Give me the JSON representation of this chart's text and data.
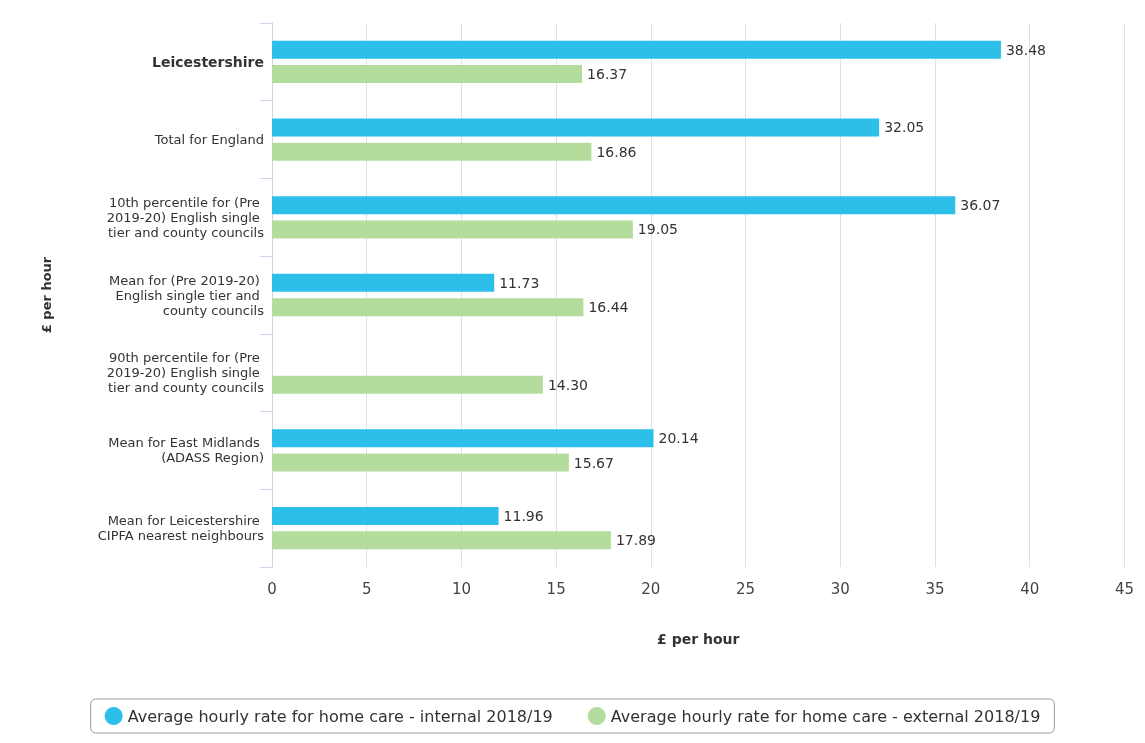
{
  "chart_data": {
    "type": "bar",
    "orientation": "horizontal",
    "xlabel": "£ per hour",
    "ylabel": "£ per hour",
    "categories": [
      "Leicestershire",
      "Total for England",
      "10th percentile for (Pre 2019-20) English single tier and county councils",
      "Mean for (Pre 2019-20) English single tier and county councils",
      "90th percentile for (Pre 2019-20) English single tier and county councils",
      "Mean for East Midlands (ADASS Region)",
      "Mean for Leicestershire CIPFA nearest neighbours"
    ],
    "series": [
      {
        "name": "Average hourly rate for home care - internal 2018/19",
        "color": "#2bbfea",
        "values": [
          38.48,
          32.05,
          36.07,
          11.73,
          null,
          20.14,
          11.96
        ],
        "value_labels": [
          "38.48",
          "32.05",
          "36.07",
          "11.73",
          null,
          "20.14",
          "11.96"
        ]
      },
      {
        "name": "Average hourly rate for home care - external 2018/19",
        "color": "#b3dc9d",
        "values": [
          16.37,
          16.86,
          19.05,
          16.44,
          14.3,
          15.67,
          17.89
        ],
        "value_labels": [
          "16.37",
          "16.86",
          "19.05",
          "16.44",
          "14.30",
          "15.67",
          "17.89"
        ]
      }
    ],
    "xlim": [
      0,
      45
    ],
    "xticks": [
      0,
      5,
      10,
      15,
      20,
      25,
      30,
      35,
      40,
      45
    ],
    "grid": "x",
    "legend": "bottom"
  }
}
